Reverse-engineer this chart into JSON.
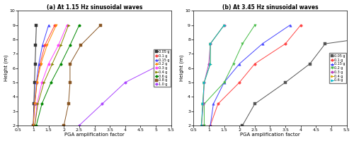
{
  "figsize": [
    5.0,
    2.0
  ],
  "dpi": 100,
  "subplot_a": {
    "title": "(a) At 1.15 Hz sinusoidal waves",
    "xlabel": "PGA amplification factor",
    "ylabel": "Height (m)",
    "xlim": [
      0.5,
      5.5
    ],
    "ylim": [
      2.0,
      10.0
    ],
    "yticks": [
      2,
      3,
      4,
      5,
      6,
      7,
      8,
      9,
      10
    ],
    "xticks": [
      0.5,
      1.0,
      1.5,
      2.0,
      2.5,
      3.0,
      3.5,
      4.0,
      4.5,
      5.0,
      5.5
    ],
    "series": [
      {
        "label": "0.05 g",
        "color": "#333333",
        "marker": "s",
        "pga": [
          1.0,
          1.02,
          1.04,
          1.06,
          1.08,
          1.1
        ],
        "height": [
          2.0,
          3.5,
          5.0,
          6.3,
          7.6,
          9.0
        ]
      },
      {
        "label": "0.1 g",
        "color": "#ff4444",
        "marker": "o",
        "pga": [
          1.0,
          1.05,
          1.12,
          1.22,
          1.38,
          1.7
        ],
        "height": [
          2.0,
          3.5,
          5.0,
          6.3,
          7.6,
          9.0
        ]
      },
      {
        "label": "0.15 g",
        "color": "#4444ff",
        "marker": "^",
        "pga": [
          1.0,
          1.04,
          1.1,
          1.18,
          1.3,
          1.5
        ],
        "height": [
          2.0,
          3.5,
          5.0,
          6.3,
          7.6,
          9.0
        ]
      },
      {
        "label": "0.2 g",
        "color": "#ff8800",
        "marker": "v",
        "pga": [
          1.0,
          1.05,
          1.12,
          1.25,
          1.45,
          1.75
        ],
        "height": [
          2.0,
          3.5,
          5.0,
          6.3,
          7.6,
          9.0
        ]
      },
      {
        "label": "0.3 g",
        "color": "#ff44ff",
        "marker": "o",
        "pga": [
          1.05,
          1.12,
          1.28,
          1.5,
          1.82,
          2.1
        ],
        "height": [
          2.0,
          3.5,
          5.0,
          6.3,
          7.6,
          9.0
        ]
      },
      {
        "label": "0.4 g",
        "color": "#888800",
        "marker": ">",
        "pga": [
          1.05,
          1.15,
          1.35,
          1.62,
          1.9,
          2.15
        ],
        "height": [
          2.0,
          3.5,
          5.0,
          6.3,
          7.6,
          9.0
        ]
      },
      {
        "label": "0.6 g",
        "color": "#008800",
        "marker": "o",
        "pga": [
          1.1,
          1.28,
          1.58,
          1.9,
          2.2,
          2.5
        ],
        "height": [
          2.0,
          3.5,
          5.0,
          6.3,
          7.6,
          9.0
        ]
      },
      {
        "label": "0.8 g",
        "color": "#885522",
        "marker": "s",
        "pga": [
          2.0,
          2.15,
          2.2,
          2.2,
          2.55,
          3.2
        ],
        "height": [
          2.0,
          3.5,
          5.0,
          6.3,
          7.6,
          9.0
        ]
      },
      {
        "label": "1.0 g",
        "color": "#aa44ff",
        "marker": "o",
        "pga": [
          2.5,
          3.25,
          4.0,
          5.2,
          7.6,
          9.1
        ],
        "height": [
          2.0,
          3.5,
          5.0,
          6.3,
          7.6,
          9.0
        ]
      }
    ]
  },
  "subplot_b": {
    "title": "(b) At 3.45 Hz sinusoidal waves",
    "xlabel": "PGA amplification factor",
    "ylabel": "Height (m)",
    "xlim": [
      0.5,
      5.5
    ],
    "ylim": [
      2.0,
      10.0
    ],
    "yticks": [
      2,
      3,
      4,
      5,
      6,
      7,
      8,
      9,
      10
    ],
    "xticks": [
      0.5,
      1.0,
      1.5,
      2.0,
      2.5,
      3.0,
      3.5,
      4.0,
      4.5,
      5.0,
      5.5
    ],
    "series": [
      {
        "label": "0.05 g",
        "color": "#555555",
        "marker": "s",
        "pga": [
          2.1,
          2.5,
          3.5,
          4.3,
          4.8,
          9.1
        ],
        "height": [
          2.0,
          3.5,
          5.0,
          6.3,
          7.7,
          9.0
        ]
      },
      {
        "label": "0.1 g",
        "color": "#ff4444",
        "marker": "o",
        "pga": [
          1.05,
          1.3,
          2.0,
          2.5,
          3.5,
          4.0
        ],
        "height": [
          2.0,
          3.5,
          5.0,
          6.3,
          7.7,
          9.0
        ]
      },
      {
        "label": "0.15 g",
        "color": "#4444ff",
        "marker": "^",
        "pga": [
          1.05,
          1.15,
          1.5,
          2.0,
          2.75,
          3.65
        ],
        "height": [
          2.0,
          3.5,
          5.0,
          6.3,
          7.7,
          9.0
        ]
      },
      {
        "label": "0.2 g",
        "color": "#44bb44",
        "marker": "v",
        "pga": [
          0.85,
          0.85,
          1.5,
          1.8,
          2.1,
          2.5
        ],
        "height": [
          2.0,
          3.5,
          5.0,
          6.3,
          7.7,
          9.0
        ]
      },
      {
        "label": "0.3 g",
        "color": "#bb44bb",
        "marker": "o",
        "pga": [
          0.76,
          0.82,
          0.85,
          1.0,
          1.05,
          1.5
        ],
        "height": [
          2.0,
          3.5,
          5.0,
          6.3,
          7.7,
          9.0
        ]
      },
      {
        "label": "0.4 g",
        "color": "#ddaa00",
        "marker": ">",
        "pga": [
          0.76,
          0.8,
          0.85,
          1.05,
          1.05,
          1.5
        ],
        "height": [
          2.0,
          3.5,
          5.0,
          6.3,
          7.7,
          9.0
        ]
      },
      {
        "label": "0.6 g",
        "color": "#00bbcc",
        "marker": ">",
        "pga": [
          0.76,
          0.8,
          0.85,
          1.05,
          1.05,
          1.5
        ],
        "height": [
          2.0,
          3.5,
          5.0,
          6.3,
          7.7,
          9.0
        ]
      }
    ]
  }
}
